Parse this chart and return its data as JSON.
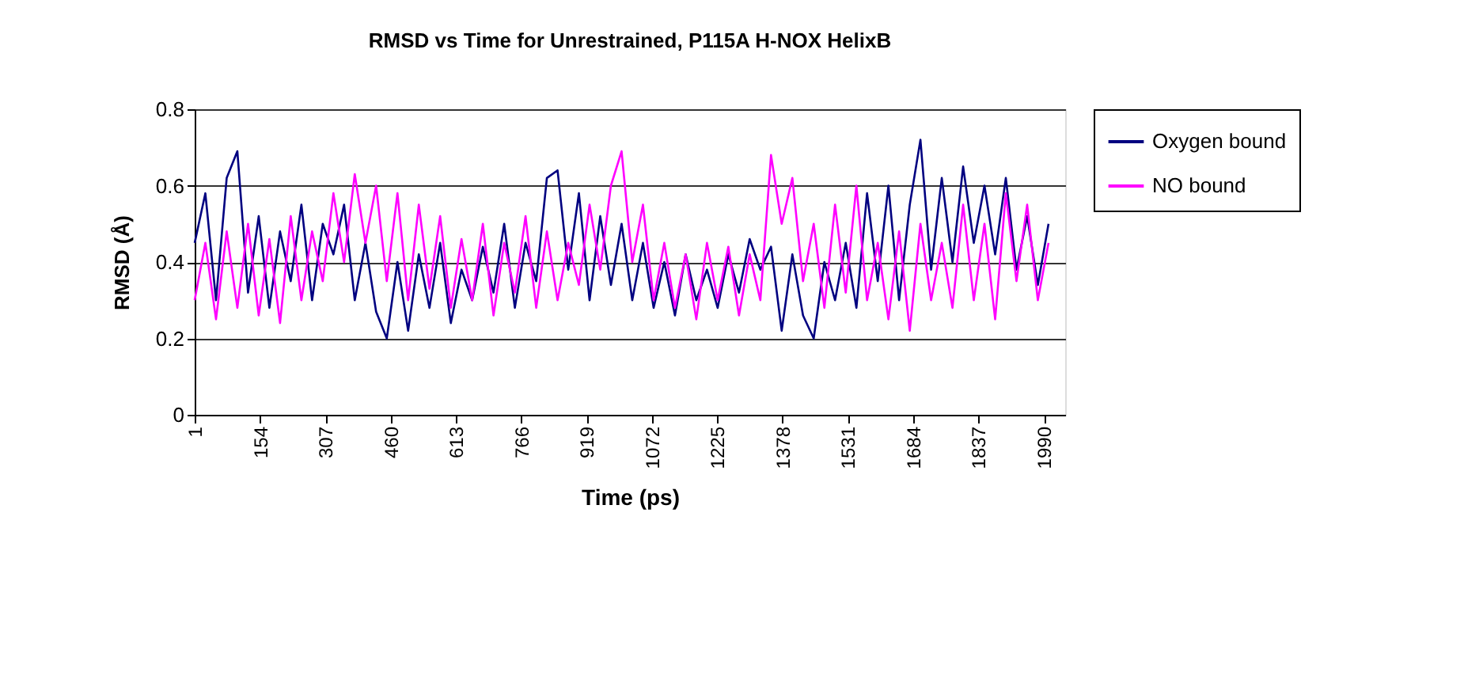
{
  "chart_data": {
    "type": "line",
    "title": "RMSD vs Time for Unrestrained, P115A H-NOX HelixB",
    "xlabel": "Time (ps)",
    "ylabel": "RMSD (Å)",
    "x": [
      1,
      26,
      51,
      76,
      101,
      126,
      151,
      176,
      201,
      226,
      251,
      276,
      301,
      326,
      351,
      376,
      401,
      426,
      451,
      476,
      501,
      526,
      551,
      576,
      601,
      626,
      651,
      676,
      701,
      726,
      751,
      776,
      801,
      826,
      851,
      876,
      901,
      926,
      951,
      976,
      1001,
      1026,
      1051,
      1076,
      1101,
      1126,
      1151,
      1176,
      1201,
      1226,
      1251,
      1276,
      1301,
      1326,
      1351,
      1376,
      1401,
      1426,
      1451,
      1476,
      1501,
      1526,
      1551,
      1576,
      1601,
      1626,
      1651,
      1676,
      1701,
      1726,
      1751,
      1776,
      1801,
      1826,
      1851,
      1876,
      1901,
      1926,
      1951,
      1976,
      2001
    ],
    "series": [
      {
        "name": "Oxygen bound",
        "color": "#000080",
        "values": [
          0.45,
          0.58,
          0.3,
          0.62,
          0.69,
          0.32,
          0.52,
          0.28,
          0.48,
          0.35,
          0.55,
          0.3,
          0.5,
          0.42,
          0.55,
          0.3,
          0.45,
          0.27,
          0.2,
          0.4,
          0.22,
          0.42,
          0.28,
          0.45,
          0.24,
          0.38,
          0.3,
          0.44,
          0.32,
          0.5,
          0.28,
          0.45,
          0.35,
          0.62,
          0.64,
          0.38,
          0.58,
          0.3,
          0.52,
          0.34,
          0.5,
          0.3,
          0.45,
          0.28,
          0.4,
          0.26,
          0.42,
          0.3,
          0.38,
          0.28,
          0.42,
          0.32,
          0.46,
          0.38,
          0.44,
          0.22,
          0.42,
          0.26,
          0.2,
          0.4,
          0.3,
          0.45,
          0.28,
          0.58,
          0.35,
          0.6,
          0.3,
          0.55,
          0.72,
          0.38,
          0.62,
          0.4,
          0.65,
          0.45,
          0.6,
          0.42,
          0.62,
          0.38,
          0.52,
          0.34,
          0.5
        ]
      },
      {
        "name": "NO bound",
        "color": "#ff00ff",
        "values": [
          0.3,
          0.45,
          0.25,
          0.48,
          0.28,
          0.5,
          0.26,
          0.46,
          0.24,
          0.52,
          0.3,
          0.48,
          0.35,
          0.58,
          0.4,
          0.63,
          0.45,
          0.6,
          0.35,
          0.58,
          0.3,
          0.55,
          0.33,
          0.52,
          0.28,
          0.46,
          0.3,
          0.5,
          0.26,
          0.45,
          0.32,
          0.52,
          0.28,
          0.48,
          0.3,
          0.45,
          0.34,
          0.55,
          0.38,
          0.6,
          0.69,
          0.4,
          0.55,
          0.3,
          0.45,
          0.28,
          0.42,
          0.25,
          0.45,
          0.3,
          0.44,
          0.26,
          0.42,
          0.3,
          0.68,
          0.5,
          0.62,
          0.35,
          0.5,
          0.28,
          0.55,
          0.32,
          0.6,
          0.3,
          0.45,
          0.25,
          0.48,
          0.22,
          0.5,
          0.3,
          0.45,
          0.28,
          0.55,
          0.3,
          0.5,
          0.25,
          0.58,
          0.35,
          0.55,
          0.3,
          0.45
        ]
      }
    ],
    "xlim": [
      1,
      2040
    ],
    "xticks": [
      1,
      154,
      307,
      460,
      613,
      766,
      919,
      1072,
      1225,
      1378,
      1531,
      1684,
      1837,
      1990
    ],
    "ylim": [
      0,
      0.8
    ],
    "yticks": [
      0,
      0.2,
      0.4,
      0.6,
      0.8
    ],
    "grid": "y",
    "legend": "right",
    "marker": "none",
    "line_style": "solid"
  }
}
